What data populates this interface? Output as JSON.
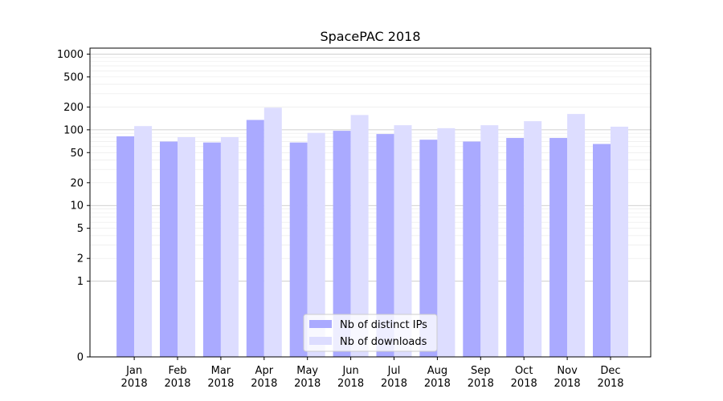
{
  "chart_data": {
    "type": "bar",
    "title": "SpacePAC 2018",
    "xlabel": "",
    "ylabel": "",
    "yscale": "symlog",
    "ylim": [
      0,
      1200
    ],
    "yticks": [
      0,
      1,
      2,
      5,
      10,
      20,
      50,
      100,
      200,
      500,
      1000
    ],
    "categories": [
      [
        "Jan",
        "2018"
      ],
      [
        "Feb",
        "2018"
      ],
      [
        "Mar",
        "2018"
      ],
      [
        "Apr",
        "2018"
      ],
      [
        "May",
        "2018"
      ],
      [
        "Jun",
        "2018"
      ],
      [
        "Jul",
        "2018"
      ],
      [
        "Aug",
        "2018"
      ],
      [
        "Sep",
        "2018"
      ],
      [
        "Oct",
        "2018"
      ],
      [
        "Nov",
        "2018"
      ],
      [
        "Dec",
        "2018"
      ]
    ],
    "series": [
      {
        "name": "Nb of distinct IPs",
        "color": "#aaaaff",
        "values": [
          82,
          70,
          68,
          135,
          68,
          97,
          88,
          74,
          70,
          78,
          78,
          65
        ]
      },
      {
        "name": "Nb of downloads",
        "color": "#ddddff",
        "values": [
          112,
          80,
          80,
          196,
          91,
          157,
          115,
          105,
          115,
          130,
          162,
          110
        ]
      }
    ],
    "grid": "y-major-and-minor",
    "legend": "bottom-center"
  }
}
